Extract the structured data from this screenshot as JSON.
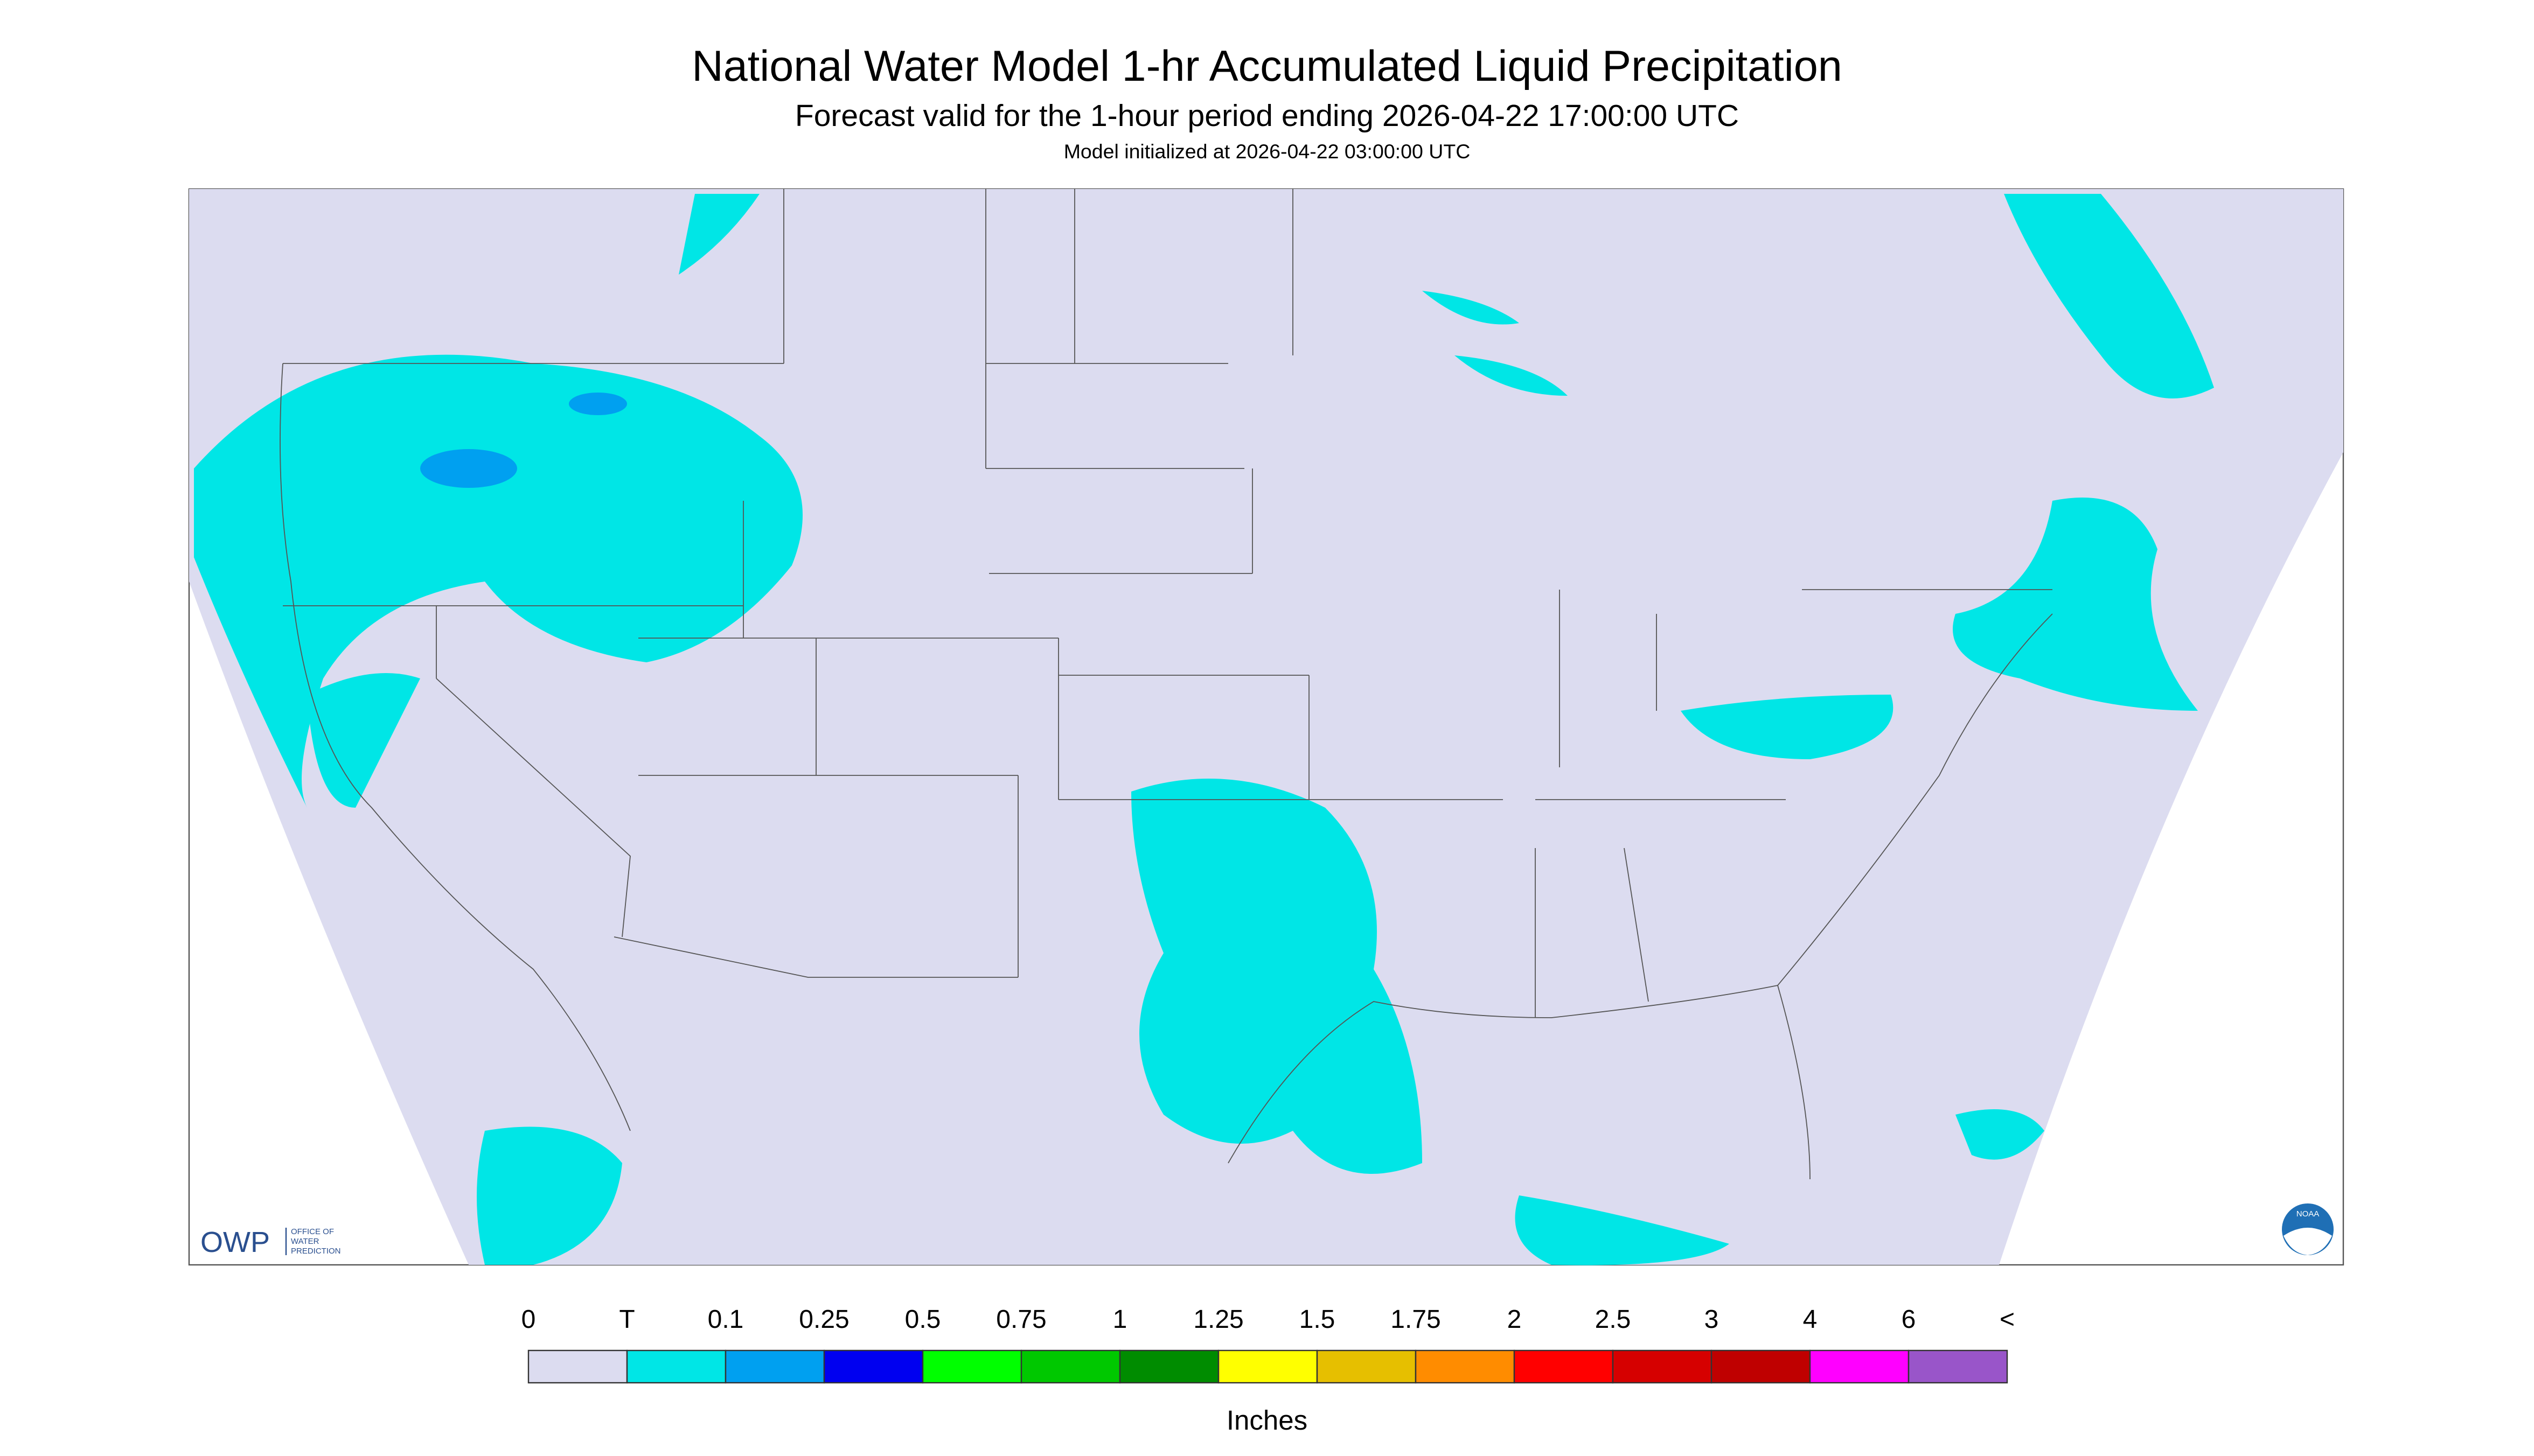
{
  "header": {
    "title": "National Water Model 1-hr Accumulated Liquid Precipitation",
    "subtitle": "Forecast valid for the 1-hour period ending 2026-04-22 17:00:00 UTC",
    "init": "Model initialized at 2026-04-22 03:00:00 UTC"
  },
  "logos": {
    "owp": "OWP",
    "owp_name": [
      "OFFICE OF",
      "WATER",
      "PREDICTION"
    ],
    "noaa": "NOAA"
  },
  "legend": {
    "labels": [
      "0",
      "T",
      "0.1",
      "0.25",
      "0.5",
      "0.75",
      "1",
      "1.25",
      "1.5",
      "1.75",
      "2",
      "2.5",
      "3",
      "4",
      "6",
      "<"
    ],
    "colors": [
      "#dcdcf0",
      "#00e6e6",
      "#00a0f0",
      "#0000f0",
      "#00ff00",
      "#00c800",
      "#008c00",
      "#ffff00",
      "#e6bf00",
      "#ff8c00",
      "#ff0000",
      "#d60000",
      "#bf0000",
      "#ff00ff",
      "#9955c9"
    ],
    "units": "Inches"
  }
}
